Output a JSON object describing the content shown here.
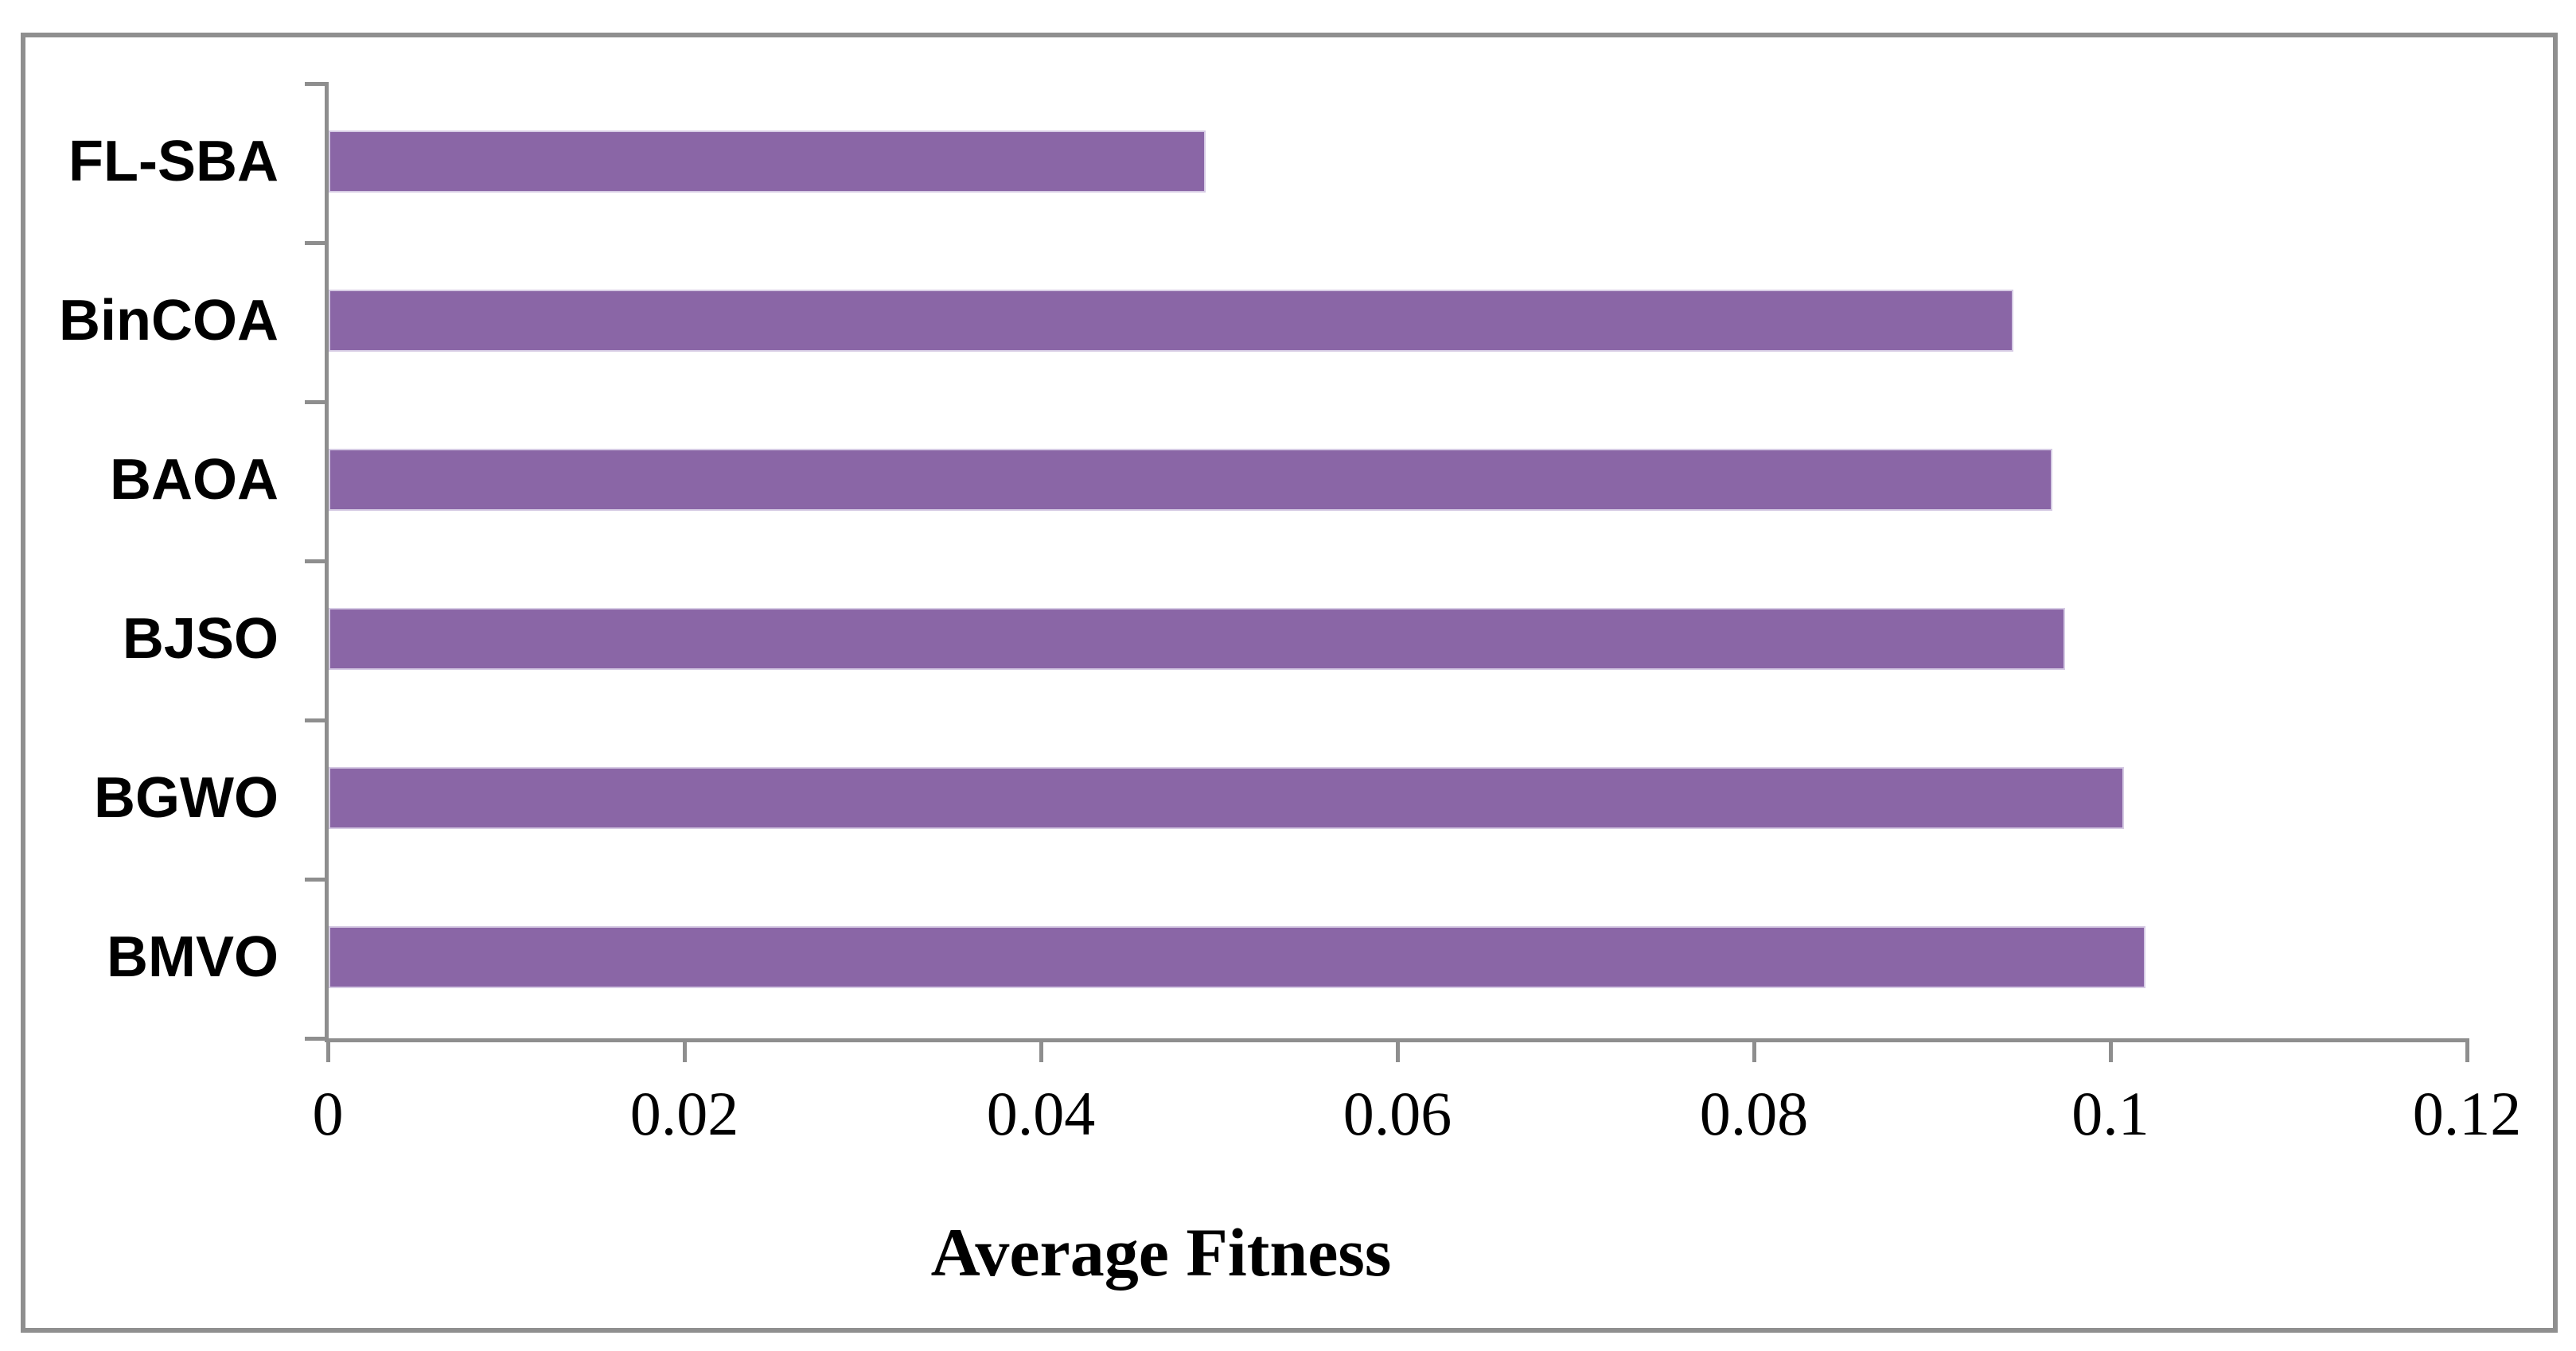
{
  "chart_data": {
    "type": "bar",
    "orientation": "horizontal",
    "title": "",
    "xlabel": "Average Fitness",
    "ylabel": "",
    "categories": [
      "FL-SBA",
      "BinCOA",
      "BAOA",
      "BJSO",
      "BGWO",
      "BMVO"
    ],
    "values": [
      0.0492,
      0.0945,
      0.0967,
      0.0974,
      0.1007,
      0.1019
    ],
    "xlim": [
      0,
      0.12
    ],
    "xticks": [
      0,
      0.02,
      0.04,
      0.06,
      0.08,
      0.1,
      0.12
    ],
    "xtick_labels": [
      "0",
      "0.02",
      "0.04",
      "0.06",
      "0.08",
      "0.1",
      "0.12"
    ],
    "grid": false,
    "legend": "none",
    "colors": {
      "bar_fill": "#8A66A6",
      "bar_border": "#D6CBE4",
      "axis": "#8E8E8E",
      "frame_border": "#8F8F8F",
      "text": "#000000",
      "background": "#FFFFFF"
    }
  }
}
